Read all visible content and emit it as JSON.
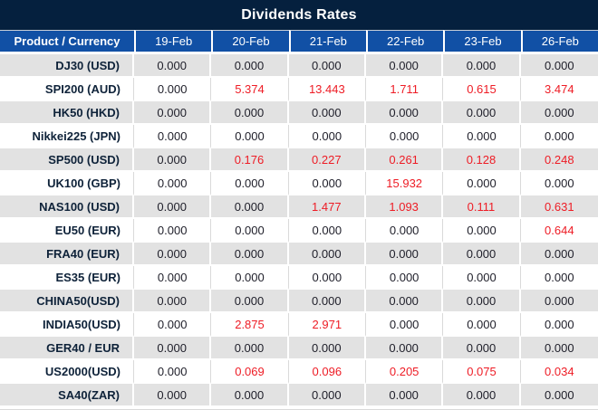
{
  "chart_data": {
    "type": "table",
    "title": "Dividends Rates",
    "product_header": "Product / Currency",
    "date_columns": [
      "19-Feb",
      "20-Feb",
      "21-Feb",
      "22-Feb",
      "23-Feb",
      "26-Feb"
    ],
    "rows": [
      {
        "product": "DJ30 (USD)",
        "values": [
          "0.000",
          "0.000",
          "0.000",
          "0.000",
          "0.000",
          "0.000"
        ]
      },
      {
        "product": "SPI200 (AUD)",
        "values": [
          "0.000",
          "5.374",
          "13.443",
          "1.711",
          "0.615",
          "3.474"
        ]
      },
      {
        "product": "HK50 (HKD)",
        "values": [
          "0.000",
          "0.000",
          "0.000",
          "0.000",
          "0.000",
          "0.000"
        ]
      },
      {
        "product": "Nikkei225 (JPN)",
        "values": [
          "0.000",
          "0.000",
          "0.000",
          "0.000",
          "0.000",
          "0.000"
        ]
      },
      {
        "product": "SP500 (USD)",
        "values": [
          "0.000",
          "0.176",
          "0.227",
          "0.261",
          "0.128",
          "0.248"
        ]
      },
      {
        "product": "UK100 (GBP)",
        "values": [
          "0.000",
          "0.000",
          "0.000",
          "15.932",
          "0.000",
          "0.000"
        ]
      },
      {
        "product": "NAS100 (USD)",
        "values": [
          "0.000",
          "0.000",
          "1.477",
          "1.093",
          "0.111",
          "0.631"
        ]
      },
      {
        "product": "EU50 (EUR)",
        "values": [
          "0.000",
          "0.000",
          "0.000",
          "0.000",
          "0.000",
          "0.644"
        ]
      },
      {
        "product": "FRA40 (EUR)",
        "values": [
          "0.000",
          "0.000",
          "0.000",
          "0.000",
          "0.000",
          "0.000"
        ]
      },
      {
        "product": "ES35 (EUR)",
        "values": [
          "0.000",
          "0.000",
          "0.000",
          "0.000",
          "0.000",
          "0.000"
        ]
      },
      {
        "product": "CHINA50(USD)",
        "values": [
          "0.000",
          "0.000",
          "0.000",
          "0.000",
          "0.000",
          "0.000"
        ]
      },
      {
        "product": "INDIA50(USD)",
        "values": [
          "0.000",
          "2.875",
          "2.971",
          "0.000",
          "0.000",
          "0.000"
        ]
      },
      {
        "product": "GER40 / EUR",
        "values": [
          "0.000",
          "0.000",
          "0.000",
          "0.000",
          "0.000",
          "0.000"
        ]
      },
      {
        "product": "US2000(USD)",
        "values": [
          "0.000",
          "0.069",
          "0.096",
          "0.205",
          "0.075",
          "0.034"
        ]
      },
      {
        "product": "SA40(ZAR)",
        "values": [
          "0.000",
          "0.000",
          "0.000",
          "0.000",
          "0.000",
          "0.000"
        ]
      }
    ]
  },
  "colors": {
    "title_bar_bg": "#05203e",
    "header_bg": "#1150a5",
    "header_text": "#ffffff",
    "stripe_gray": "#e2e2e2",
    "zero_value_text": "#1e1e29",
    "nonzero_value_text": "#ee1c25",
    "product_text": "#0e2239"
  }
}
